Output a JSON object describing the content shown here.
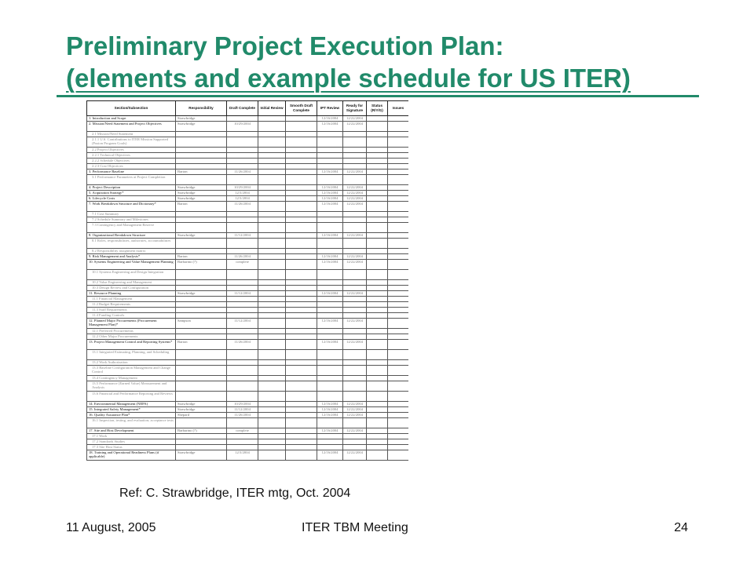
{
  "slide": {
    "title_line1": "Preliminary Project Execution Plan:",
    "title_line2": "(elements and example schedule for US ITER)",
    "reference": "Ref: C. Strawbridge, ITER mtg, Oct. 2004",
    "footer_date": "11 August, 2005",
    "footer_center": "ITER TBM Meeting",
    "page_number": "24"
  },
  "table": {
    "headers": [
      "Section/Subsection",
      "Responsibility",
      "Draft Complete",
      "Initial Review",
      "Smooth Draft Complete",
      "IPT Review",
      "Ready for Signature",
      "Status (R/Y/G)",
      "Issues"
    ],
    "rows": [
      {
        "t": "sec",
        "h": 7,
        "c": [
          "1. Introduction and Scope",
          "Strawbridge",
          "",
          "",
          "",
          "12/16/2004",
          "12/22/2004",
          "",
          ""
        ]
      },
      {
        "t": "sec",
        "h": 13,
        "c": [
          "2. Mission/Need Statement and Project Objectives",
          "Strawbridge",
          "10/29/2004",
          "",
          "",
          "12/16/2004",
          "12/22/2004",
          "",
          ""
        ]
      },
      {
        "t": "sub",
        "h": 7,
        "c": [
          "2.1 Mission/Need Statement",
          "",
          "",
          "",
          "",
          "",
          "",
          "",
          ""
        ]
      },
      {
        "t": "sub",
        "h": 13,
        "c": [
          "2.1.1 U.S. Contributions to ITER Mission Supported (Fusion Program Goals)",
          "",
          "",
          "",
          "",
          "",
          "",
          "",
          ""
        ]
      },
      {
        "t": "sub",
        "h": 7,
        "c": [
          "2.2 Project Objectives",
          "",
          "",
          "",
          "",
          "",
          "",
          "",
          ""
        ]
      },
      {
        "t": "sub",
        "h": 7,
        "c": [
          "2.2.1 Technical Objectives",
          "",
          "",
          "",
          "",
          "",
          "",
          "",
          ""
        ]
      },
      {
        "t": "sub",
        "h": 7,
        "c": [
          "2.2.2 Schedule Objectives",
          "",
          "",
          "",
          "",
          "",
          "",
          "",
          ""
        ]
      },
      {
        "t": "sub",
        "h": 7,
        "c": [
          "2.2.3 Cost Objectives",
          "",
          "",
          "",
          "",
          "",
          "",
          "",
          ""
        ]
      },
      {
        "t": "sec",
        "h": 7,
        "c": [
          "3. Performance Baseline",
          "Barton",
          "11/26/2004",
          "",
          "",
          "12/16/2004",
          "12/22/2004",
          "",
          ""
        ]
      },
      {
        "t": "sub",
        "h": 13,
        "c": [
          "3.1 Performance Parameters at Project Completion",
          "",
          "",
          "",
          "",
          "",
          "",
          "",
          ""
        ]
      },
      {
        "t": "sec",
        "h": 7,
        "c": [
          "4. Project Description",
          "Strawbridge",
          "10/29/2004",
          "",
          "",
          "12/16/2004",
          "12/22/2004",
          "",
          ""
        ]
      },
      {
        "t": "sec",
        "h": 7,
        "c": [
          "5. Acquisition Strategy*",
          "Strawbridge",
          "12/3/2004",
          "",
          "",
          "12/16/2004",
          "12/22/2004",
          "",
          ""
        ]
      },
      {
        "t": "sec",
        "h": 7,
        "c": [
          "6. Lifecycle Costs",
          "Strawbridge",
          "12/3/2004",
          "",
          "",
          "12/16/2004",
          "12/22/2004",
          "",
          ""
        ]
      },
      {
        "t": "sec",
        "h": 13,
        "c": [
          "7. Work Breakdown Structure and Dictionary*",
          "Barton",
          "11/26/2004",
          "",
          "",
          "12/16/2004",
          "12/22/2004",
          "",
          ""
        ]
      },
      {
        "t": "sub",
        "h": 7,
        "c": [
          "7.1 Cost Summary",
          "",
          "",
          "",
          "",
          "",
          "",
          "",
          ""
        ]
      },
      {
        "t": "sub",
        "h": 7,
        "c": [
          "7.2 Schedule Summary and Milestones",
          "",
          "",
          "",
          "",
          "",
          "",
          "",
          ""
        ]
      },
      {
        "t": "sub",
        "h": 13,
        "c": [
          "7.3 Contingency and Management Reserve",
          "",
          "",
          "",
          "",
          "",
          "",
          "",
          ""
        ]
      },
      {
        "t": "sec",
        "h": 7,
        "c": [
          "8. Organizational Breakdown Structure",
          "Strawbridge",
          "11/12/2004",
          "",
          "",
          "12/16/2004",
          "12/22/2004",
          "",
          ""
        ]
      },
      {
        "t": "sub",
        "h": 13,
        "c": [
          "8.1 Roles, responsibilities, authorities, accountabilities",
          "",
          "",
          "",
          "",
          "",
          "",
          "",
          ""
        ]
      },
      {
        "t": "sub",
        "h": 7,
        "c": [
          "8.2 Responsibility assignment matrix",
          "",
          "",
          "",
          "",
          "",
          "",
          "",
          ""
        ]
      },
      {
        "t": "sec",
        "h": 7,
        "c": [
          "9. Risk Management and Analysis*",
          "Barton",
          "11/26/2004",
          "",
          "",
          "12/16/2004",
          "12/22/2004",
          "",
          ""
        ]
      },
      {
        "t": "sec",
        "h": 13,
        "c": [
          "10. Systems Engineering and Value Management Planning",
          "Barbarino (?)",
          "complete",
          "",
          "",
          "12/16/2004",
          "12/22/2004",
          "",
          ""
        ]
      },
      {
        "t": "sub",
        "h": 13,
        "c": [
          "10.1 Systems Engineering and Design Integration",
          "",
          "",
          "",
          "",
          "",
          "",
          "",
          ""
        ]
      },
      {
        "t": "sub",
        "h": 7,
        "c": [
          "10.2 Value Engineering and Management",
          "",
          "",
          "",
          "",
          "",
          "",
          "",
          ""
        ]
      },
      {
        "t": "sub",
        "h": 7,
        "c": [
          "10.3 Design Review and Configuration",
          "",
          "",
          "",
          "",
          "",
          "",
          "",
          ""
        ]
      },
      {
        "t": "sec",
        "h": 7,
        "c": [
          "11. Resource Planning",
          "Strawbridge",
          "11/12/2004",
          "",
          "",
          "12/16/2004",
          "12/22/2004",
          "",
          ""
        ]
      },
      {
        "t": "sub",
        "h": 7,
        "c": [
          "11.1 Financial Management",
          "",
          "",
          "",
          "",
          "",
          "",
          "",
          ""
        ]
      },
      {
        "t": "sub",
        "h": 7,
        "c": [
          "11.2 Budget Requirements",
          "",
          "",
          "",
          "",
          "",
          "",
          "",
          ""
        ]
      },
      {
        "t": "sub",
        "h": 7,
        "c": [
          "11.3 Staff Requirements",
          "",
          "",
          "",
          "",
          "",
          "",
          "",
          ""
        ]
      },
      {
        "t": "sub",
        "h": 7,
        "c": [
          "11.4 Funding Controls",
          "",
          "",
          "",
          "",
          "",
          "",
          "",
          ""
        ]
      },
      {
        "t": "sec",
        "h": 13,
        "c": [
          "12. Planned Major Procurements (Procurement Management Plan)*",
          "Sampson",
          "11/12/2004",
          "",
          "",
          "12/16/2004",
          "12/22/2004",
          "",
          ""
        ]
      },
      {
        "t": "sub",
        "h": 7,
        "c": [
          "12.1 Preferred Procurements",
          "",
          "",
          "",
          "",
          "",
          "",
          "",
          ""
        ]
      },
      {
        "t": "sub",
        "h": 7,
        "c": [
          "12.2 Other Major Procurements",
          "",
          "",
          "",
          "",
          "",
          "",
          "",
          ""
        ]
      },
      {
        "t": "sec",
        "h": 13,
        "c": [
          "13. Project Management Control and Reporting Systems*",
          "Barton",
          "11/26/2004",
          "",
          "",
          "12/16/2004",
          "12/22/2004",
          "",
          ""
        ]
      },
      {
        "t": "sub",
        "h": 13,
        "c": [
          "13.1 Integrated Estimating, Planning, and Scheduling",
          "",
          "",
          "",
          "",
          "",
          "",
          "",
          ""
        ]
      },
      {
        "t": "sub",
        "h": 7,
        "c": [
          "13.2 Work Authorization",
          "",
          "",
          "",
          "",
          "",
          "",
          "",
          ""
        ]
      },
      {
        "t": "sub",
        "h": 13,
        "c": [
          "13.3 Baseline Configuration Management and Change Control",
          "",
          "",
          "",
          "",
          "",
          "",
          "",
          ""
        ]
      },
      {
        "t": "sub",
        "h": 7,
        "c": [
          "13.4 Contingency Management",
          "",
          "",
          "",
          "",
          "",
          "",
          "",
          ""
        ]
      },
      {
        "t": "sub",
        "h": 13,
        "c": [
          "13.5 Performance (Earned Value) Measurement and Analysis",
          "",
          "",
          "",
          "",
          "",
          "",
          "",
          ""
        ]
      },
      {
        "t": "sub",
        "h": 13,
        "c": [
          "13.6 Financial and Performance Reporting and Reviews",
          "",
          "",
          "",
          "",
          "",
          "",
          "",
          ""
        ]
      },
      {
        "t": "sec",
        "h": 7,
        "c": [
          "14. Environmental Management (NEPA)",
          "Strawbridge",
          "10/29/2004",
          "",
          "",
          "12/16/2004",
          "12/22/2004",
          "",
          ""
        ]
      },
      {
        "t": "sec",
        "h": 7,
        "c": [
          "15. Integrated Safety Management*",
          "Strawbridge",
          "11/12/2004",
          "",
          "",
          "12/16/2004",
          "12/22/2004",
          "",
          ""
        ]
      },
      {
        "t": "sec",
        "h": 7,
        "c": [
          "16. Quality Assurance Plan*",
          "Shepard",
          "11/26/2004",
          "",
          "",
          "12/16/2004",
          "12/22/2004",
          "",
          ""
        ]
      },
      {
        "t": "sub",
        "h": 13,
        "c": [
          "16.1 Inspection, testing, and evaluation; acceptance tests",
          "",
          "",
          "",
          "",
          "",
          "",
          "",
          ""
        ]
      },
      {
        "t": "sec",
        "h": 7,
        "c": [
          "17. Site and Host Development",
          "Barbarino (?)",
          "complete",
          "",
          "",
          "12/16/2004",
          "12/22/2004",
          "",
          ""
        ]
      },
      {
        "t": "sub",
        "h": 7,
        "c": [
          "17.1 Work",
          "",
          "",
          "",
          "",
          "",
          "",
          "",
          ""
        ]
      },
      {
        "t": "sub",
        "h": 7,
        "c": [
          "17.2 Standards Studies",
          "",
          "",
          "",
          "",
          "",
          "",
          "",
          ""
        ]
      },
      {
        "t": "sub",
        "h": 7,
        "c": [
          "17.3 Site Host Status",
          "",
          "",
          "",
          "",
          "",
          "",
          "",
          ""
        ]
      },
      {
        "t": "sec",
        "h": 13,
        "c": [
          "18. Training and Operational Readiness Plans (if applicable)",
          "Strawbridge",
          "12/3/2004",
          "",
          "",
          "12/16/2004",
          "12/22/2004",
          "",
          ""
        ]
      }
    ]
  }
}
